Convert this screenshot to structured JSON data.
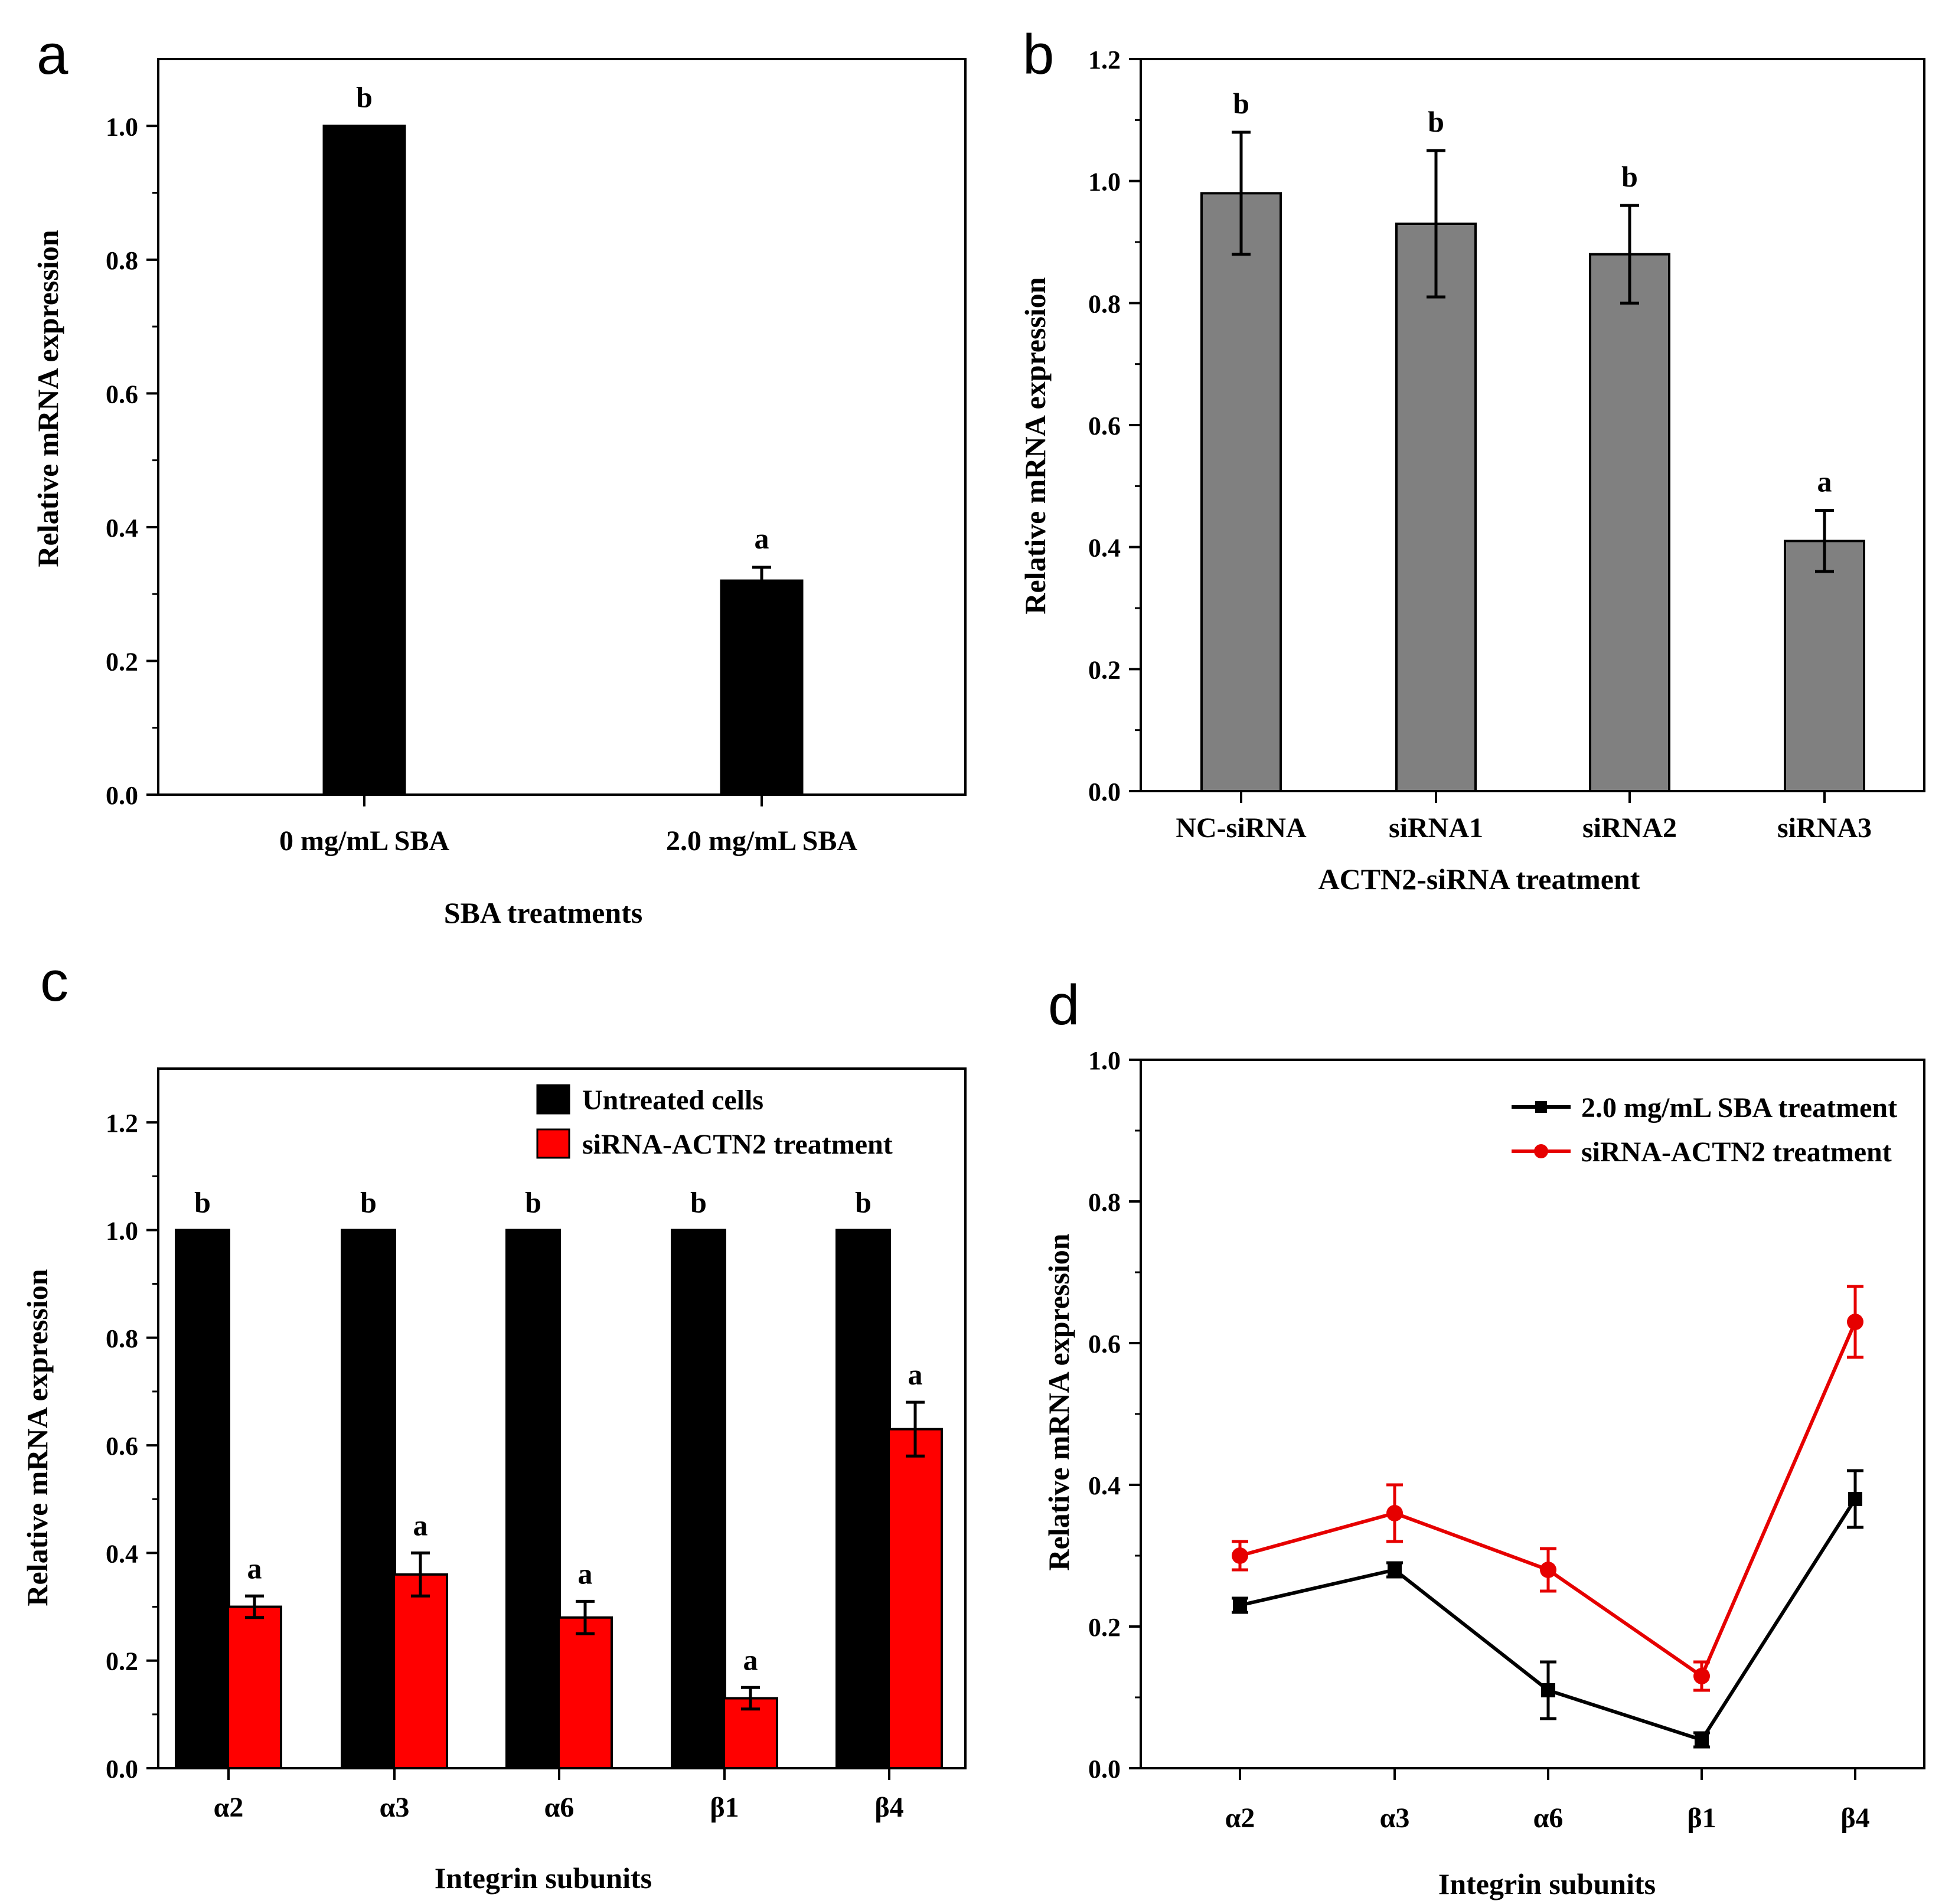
{
  "figure": {
    "colors": {
      "black": "#000000",
      "gray_bar": "#808080",
      "red": "#ff0000",
      "line_black": "#000000",
      "line_red": "#e60000"
    }
  },
  "chart_data": [
    {
      "panel": "a",
      "type": "bar",
      "title": "",
      "xlabel": "SBA treatments",
      "ylabel": "Relative mRNA expression",
      "ylim": [
        0,
        1.1
      ],
      "yticks": [
        0.0,
        0.2,
        0.4,
        0.6,
        0.8,
        1.0
      ],
      "ytick_labels": [
        "0.0",
        "0.2",
        "0.4",
        "0.6",
        "0.8",
        "1.0"
      ],
      "categories": [
        "0 mg/mL SBA",
        "2.0 mg/mL SBA"
      ],
      "series": [
        {
          "name": "",
          "color": "#000000",
          "values": [
            1.0,
            0.32
          ],
          "errors": [
            0,
            0.02
          ],
          "letters": [
            "b",
            "a"
          ]
        }
      ]
    },
    {
      "panel": "b",
      "type": "bar",
      "title": "",
      "xlabel": "ACTN2-siRNA treatment",
      "ylabel": "Relative mRNA expression",
      "ylim": [
        0,
        1.2
      ],
      "yticks": [
        0.0,
        0.2,
        0.4,
        0.6,
        0.8,
        1.0,
        1.2
      ],
      "ytick_labels": [
        "0.0",
        "0.2",
        "0.4",
        "0.6",
        "0.8",
        "1.0",
        "1.2"
      ],
      "categories": [
        "NC-siRNA",
        "siRNA1",
        "siRNA2",
        "siRNA3"
      ],
      "series": [
        {
          "name": "",
          "color": "#808080",
          "values": [
            0.98,
            0.93,
            0.88,
            0.41
          ],
          "errors": [
            0.1,
            0.12,
            0.08,
            0.05
          ],
          "letters": [
            "b",
            "b",
            "b",
            "a"
          ]
        }
      ]
    },
    {
      "panel": "c",
      "type": "bar",
      "title": "",
      "xlabel": "Integrin subunits",
      "ylabel": "Relative mRNA expression",
      "ylim": [
        0,
        1.3
      ],
      "yticks": [
        0.0,
        0.2,
        0.4,
        0.6,
        0.8,
        1.0,
        1.2
      ],
      "ytick_labels": [
        "0.0",
        "0.2",
        "0.4",
        "0.6",
        "0.8",
        "1.0",
        "1.2"
      ],
      "categories": [
        "α2",
        "α3",
        "α6",
        "β1",
        "β4"
      ],
      "legend_position": "top-right",
      "series": [
        {
          "name": "Untreated cells",
          "color": "#000000",
          "values": [
            1.0,
            1.0,
            1.0,
            1.0,
            1.0
          ],
          "errors": [
            0,
            0,
            0,
            0,
            0
          ],
          "letters": [
            "b",
            "b",
            "b",
            "b",
            "b"
          ]
        },
        {
          "name": "siRNA-ACTN2 treatment",
          "color": "#ff0000",
          "values": [
            0.3,
            0.36,
            0.28,
            0.13,
            0.63
          ],
          "errors": [
            0.02,
            0.04,
            0.03,
            0.02,
            0.05
          ],
          "letters": [
            "a",
            "a",
            "a",
            "a",
            "a"
          ]
        }
      ]
    },
    {
      "panel": "d",
      "type": "line",
      "title": "",
      "xlabel": "Integrin subunits",
      "ylabel": "Relative mRNA expression",
      "ylim": [
        0,
        1.0
      ],
      "yticks": [
        0.0,
        0.2,
        0.4,
        0.6,
        0.8,
        1.0
      ],
      "ytick_labels": [
        "0.0",
        "0.2",
        "0.4",
        "0.6",
        "0.8",
        "1.0"
      ],
      "categories": [
        "α2",
        "α3",
        "α6",
        "β1",
        "β4"
      ],
      "legend_position": "top-right",
      "series": [
        {
          "name": "2.0 mg/mL SBA treatment",
          "color": "#000000",
          "marker": "square",
          "values": [
            0.23,
            0.28,
            0.11,
            0.04,
            0.38
          ],
          "errors": [
            0.01,
            0.01,
            0.04,
            0.01,
            0.04
          ]
        },
        {
          "name": "siRNA-ACTN2 treatment",
          "color": "#e60000",
          "marker": "circle",
          "values": [
            0.3,
            0.36,
            0.28,
            0.13,
            0.63
          ],
          "errors": [
            0.02,
            0.04,
            0.03,
            0.02,
            0.05
          ]
        }
      ]
    }
  ]
}
